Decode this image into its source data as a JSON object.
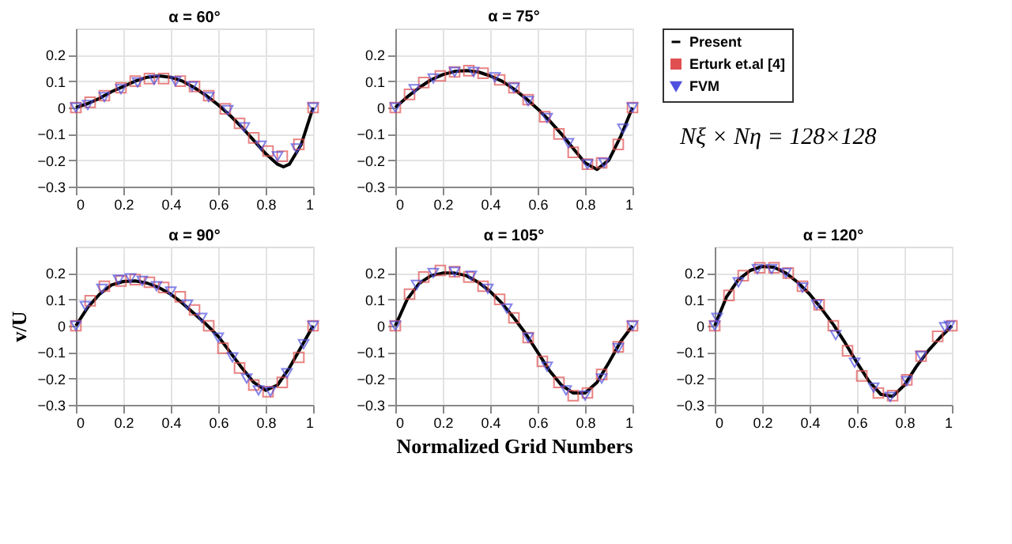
{
  "chart_data": [
    {
      "type": "line",
      "title": "α = 60°",
      "xlim": [
        0,
        1
      ],
      "xticks": [
        0,
        0.2,
        0.4,
        0.6,
        0.8,
        1
      ],
      "ylim": [
        -0.3,
        0.3
      ],
      "yticks": [
        -0.3,
        -0.2,
        -0.1,
        0,
        0.1,
        0.2
      ],
      "grid": true,
      "series": [
        {
          "color": "#000000",
          "marker": "none",
          "x": [
            0,
            0.05,
            0.1,
            0.15,
            0.2,
            0.25,
            0.3,
            0.35,
            0.4,
            0.45,
            0.5,
            0.55,
            0.6,
            0.65,
            0.7,
            0.75,
            0.8,
            0.85,
            0.875,
            0.9,
            0.95,
            1
          ],
          "values": [
            0,
            0.015,
            0.035,
            0.06,
            0.08,
            0.1,
            0.115,
            0.12,
            0.115,
            0.1,
            0.075,
            0.045,
            0.01,
            -0.03,
            -0.075,
            -0.125,
            -0.175,
            -0.215,
            -0.225,
            -0.215,
            -0.14,
            0
          ]
        },
        {
          "type": "scatter",
          "color": "#e05050",
          "marker": "square",
          "x": [
            0,
            0.06,
            0.12,
            0.19,
            0.25,
            0.31,
            0.37,
            0.44,
            0.5,
            0.56,
            0.63,
            0.69,
            0.75,
            0.81,
            0.87,
            0.94,
            1
          ],
          "values": [
            0,
            0.02,
            0.045,
            0.075,
            0.1,
            0.11,
            0.11,
            0.1,
            0.08,
            0.045,
            -0.005,
            -0.06,
            -0.115,
            -0.165,
            -0.185,
            -0.14,
            0
          ]
        },
        {
          "type": "scatter",
          "color": "#5050e0",
          "marker": "triangle",
          "x": [
            0,
            0.05,
            0.12,
            0.19,
            0.26,
            0.33,
            0.42,
            0.49,
            0.56,
            0.64,
            0.71,
            0.78,
            0.85,
            0.93,
            1
          ],
          "values": [
            0,
            0.01,
            0.04,
            0.07,
            0.095,
            0.105,
            0.1,
            0.08,
            0.04,
            -0.01,
            -0.075,
            -0.145,
            -0.185,
            -0.155,
            0
          ]
        }
      ]
    },
    {
      "type": "line",
      "title": "α = 75°",
      "xlim": [
        0,
        1
      ],
      "xticks": [
        0,
        0.2,
        0.4,
        0.6,
        0.8,
        1
      ],
      "ylim": [
        -0.3,
        0.3
      ],
      "yticks": [
        -0.3,
        -0.2,
        -0.1,
        0,
        0.1,
        0.2
      ],
      "grid": true,
      "legend": "right",
      "annotations": [
        "Nξ × Nη = 128×128"
      ],
      "series": [
        {
          "name": "Present",
          "color": "#000000",
          "marker": "none",
          "x": [
            0,
            0.05,
            0.1,
            0.15,
            0.2,
            0.25,
            0.3,
            0.35,
            0.4,
            0.45,
            0.5,
            0.55,
            0.6,
            0.65,
            0.7,
            0.75,
            0.8,
            0.85,
            0.9,
            0.95,
            1
          ],
          "values": [
            0,
            0.04,
            0.075,
            0.105,
            0.125,
            0.137,
            0.14,
            0.135,
            0.12,
            0.1,
            0.07,
            0.035,
            -0.005,
            -0.05,
            -0.1,
            -0.155,
            -0.21,
            -0.235,
            -0.2,
            -0.11,
            0
          ]
        },
        {
          "name": "Erturk et.al [4]",
          "type": "scatter",
          "color": "#e05050",
          "marker": "square",
          "x": [
            0,
            0.06,
            0.12,
            0.19,
            0.25,
            0.31,
            0.37,
            0.44,
            0.5,
            0.56,
            0.63,
            0.69,
            0.75,
            0.81,
            0.87,
            0.94,
            1
          ],
          "values": [
            0,
            0.05,
            0.095,
            0.12,
            0.135,
            0.14,
            0.13,
            0.105,
            0.075,
            0.03,
            -0.035,
            -0.1,
            -0.17,
            -0.215,
            -0.21,
            -0.14,
            0
          ]
        },
        {
          "name": "FVM",
          "type": "scatter",
          "color": "#5050e0",
          "marker": "triangle",
          "x": [
            0,
            0.08,
            0.16,
            0.25,
            0.33,
            0.42,
            0.5,
            0.56,
            0.64,
            0.73,
            0.81,
            0.88,
            0.96,
            1
          ],
          "values": [
            0,
            0.07,
            0.11,
            0.135,
            0.135,
            0.115,
            0.075,
            0.025,
            -0.04,
            -0.135,
            -0.215,
            -0.21,
            -0.08,
            0
          ]
        }
      ]
    },
    {
      "type": "line",
      "title": "α = 90°",
      "ylabel": "v/U",
      "xlim": [
        0,
        1
      ],
      "xticks": [
        0,
        0.2,
        0.4,
        0.6,
        0.8,
        1
      ],
      "ylim": [
        -0.3,
        0.3
      ],
      "yticks": [
        -0.3,
        -0.2,
        -0.1,
        0,
        0.1,
        0.2
      ],
      "grid": true,
      "series": [
        {
          "color": "#000000",
          "marker": "none",
          "x": [
            0,
            0.05,
            0.1,
            0.15,
            0.2,
            0.25,
            0.3,
            0.35,
            0.4,
            0.45,
            0.5,
            0.55,
            0.6,
            0.65,
            0.7,
            0.75,
            0.8,
            0.85,
            0.9,
            0.95,
            1
          ],
          "values": [
            0,
            0.07,
            0.12,
            0.155,
            0.168,
            0.17,
            0.162,
            0.145,
            0.12,
            0.085,
            0.045,
            0.005,
            -0.04,
            -0.1,
            -0.16,
            -0.215,
            -0.245,
            -0.225,
            -0.16,
            -0.08,
            0
          ]
        },
        {
          "type": "scatter",
          "color": "#e05050",
          "marker": "square",
          "x": [
            0,
            0.06,
            0.12,
            0.19,
            0.25,
            0.31,
            0.37,
            0.44,
            0.5,
            0.56,
            0.62,
            0.69,
            0.75,
            0.81,
            0.87,
            0.94,
            1
          ],
          "values": [
            0,
            0.095,
            0.15,
            0.17,
            0.175,
            0.165,
            0.145,
            0.11,
            0.06,
            0,
            -0.085,
            -0.16,
            -0.225,
            -0.25,
            -0.215,
            -0.12,
            0
          ]
        },
        {
          "type": "scatter",
          "color": "#5050e0",
          "marker": "triangle",
          "x": [
            0,
            0.04,
            0.11,
            0.18,
            0.23,
            0.28,
            0.34,
            0.4,
            0.47,
            0.53,
            0.6,
            0.66,
            0.72,
            0.77,
            0.82,
            0.89,
            0.96,
            1
          ],
          "values": [
            0,
            0.075,
            0.14,
            0.175,
            0.18,
            0.17,
            0.15,
            0.13,
            0.08,
            0.03,
            -0.045,
            -0.12,
            -0.2,
            -0.245,
            -0.25,
            -0.18,
            -0.07,
            0
          ]
        }
      ]
    },
    {
      "type": "line",
      "title": "α = 105°",
      "xlabel": "Normalized Grid Numbers",
      "xlim": [
        0,
        1
      ],
      "xticks": [
        0,
        0.2,
        0.4,
        0.6,
        0.8,
        1
      ],
      "ylim": [
        -0.3,
        0.3
      ],
      "yticks": [
        -0.3,
        -0.2,
        -0.1,
        0,
        0.1,
        0.2
      ],
      "grid": true,
      "series": [
        {
          "color": "#000000",
          "marker": "none",
          "x": [
            0,
            0.05,
            0.1,
            0.15,
            0.2,
            0.25,
            0.3,
            0.35,
            0.4,
            0.45,
            0.5,
            0.55,
            0.6,
            0.65,
            0.7,
            0.75,
            0.8,
            0.85,
            0.9,
            0.95,
            1
          ],
          "values": [
            0,
            0.1,
            0.16,
            0.19,
            0.2,
            0.2,
            0.19,
            0.165,
            0.13,
            0.085,
            0.03,
            -0.03,
            -0.1,
            -0.17,
            -0.225,
            -0.255,
            -0.255,
            -0.215,
            -0.14,
            -0.06,
            0
          ]
        },
        {
          "type": "scatter",
          "color": "#e05050",
          "marker": "square",
          "x": [
            0,
            0.06,
            0.12,
            0.19,
            0.25,
            0.31,
            0.37,
            0.44,
            0.5,
            0.56,
            0.62,
            0.69,
            0.75,
            0.81,
            0.87,
            0.94,
            1
          ],
          "values": [
            0,
            0.12,
            0.185,
            0.21,
            0.205,
            0.185,
            0.15,
            0.1,
            0.03,
            -0.045,
            -0.135,
            -0.215,
            -0.265,
            -0.255,
            -0.185,
            -0.08,
            0
          ]
        },
        {
          "type": "scatter",
          "color": "#5050e0",
          "marker": "triangle",
          "x": [
            0,
            0.09,
            0.16,
            0.25,
            0.32,
            0.39,
            0.47,
            0.56,
            0.64,
            0.72,
            0.8,
            0.87,
            0.94,
            1
          ],
          "values": [
            0,
            0.155,
            0.2,
            0.205,
            0.19,
            0.14,
            0.065,
            -0.045,
            -0.155,
            -0.245,
            -0.265,
            -0.2,
            -0.085,
            0
          ]
        }
      ]
    },
    {
      "type": "line",
      "title": "α = 120°",
      "xlim": [
        0,
        1
      ],
      "xticks": [
        0,
        0.2,
        0.4,
        0.6,
        0.8,
        1
      ],
      "ylim": [
        -0.3,
        0.3
      ],
      "yticks": [
        -0.3,
        -0.2,
        -0.1,
        0,
        0.1,
        0.2
      ],
      "grid": true,
      "series": [
        {
          "color": "#000000",
          "marker": "none",
          "x": [
            0,
            0.05,
            0.1,
            0.15,
            0.2,
            0.25,
            0.3,
            0.35,
            0.4,
            0.45,
            0.5,
            0.55,
            0.6,
            0.65,
            0.7,
            0.75,
            0.8,
            0.85,
            0.9,
            0.95,
            1
          ],
          "values": [
            0,
            0.11,
            0.175,
            0.21,
            0.225,
            0.222,
            0.2,
            0.165,
            0.12,
            0.065,
            0.005,
            -0.065,
            -0.14,
            -0.21,
            -0.26,
            -0.268,
            -0.225,
            -0.155,
            -0.095,
            -0.045,
            0
          ]
        },
        {
          "type": "scatter",
          "color": "#e05050",
          "marker": "square",
          "x": [
            0,
            0.06,
            0.12,
            0.19,
            0.25,
            0.31,
            0.37,
            0.44,
            0.5,
            0.56,
            0.62,
            0.69,
            0.75,
            0.81,
            0.87,
            0.94,
            1
          ],
          "values": [
            0,
            0.115,
            0.19,
            0.22,
            0.22,
            0.2,
            0.15,
            0.08,
            0,
            -0.095,
            -0.19,
            -0.255,
            -0.265,
            -0.205,
            -0.115,
            -0.04,
            0
          ]
        },
        {
          "type": "scatter",
          "color": "#5050e0",
          "marker": "triangle",
          "x": [
            0,
            0.01,
            0.1,
            0.18,
            0.24,
            0.3,
            0.37,
            0.43,
            0.51,
            0.59,
            0.67,
            0.74,
            0.81,
            0.87,
            0.97,
            0.99
          ],
          "values": [
            0,
            0.03,
            0.165,
            0.215,
            0.215,
            0.2,
            0.145,
            0.08,
            -0.035,
            -0.14,
            -0.235,
            -0.27,
            -0.21,
            -0.115,
            -0.005,
            0
          ]
        }
      ]
    }
  ]
}
